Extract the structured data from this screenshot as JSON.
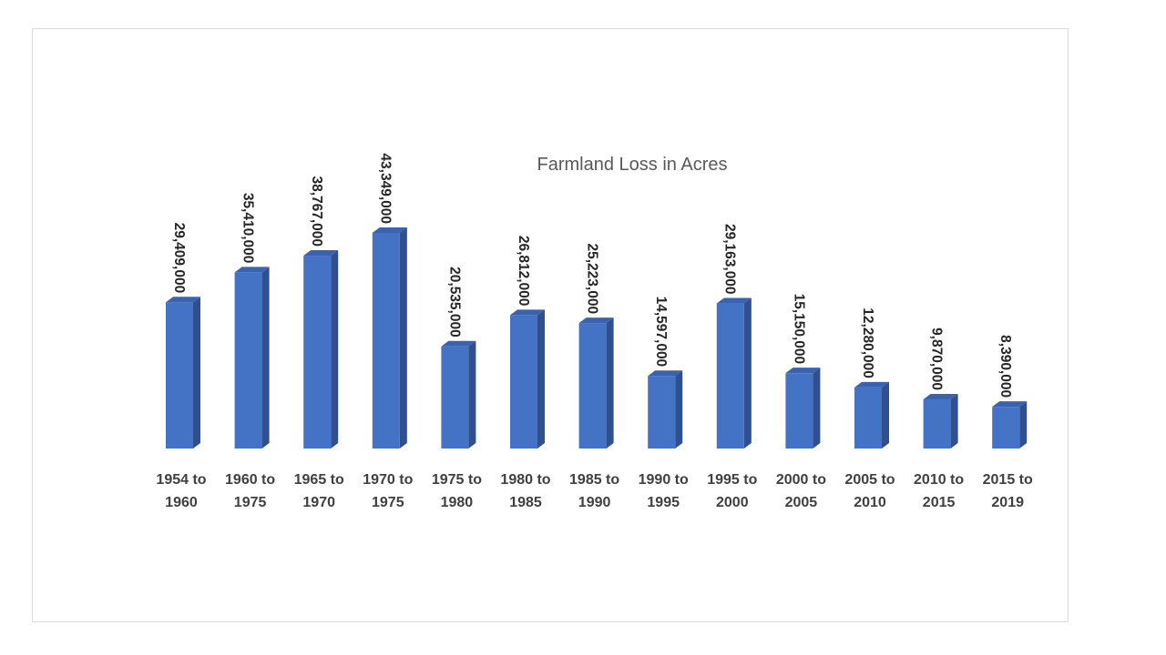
{
  "chart_data": {
    "type": "bar",
    "title": "Farmland Loss in Acres",
    "categories": [
      [
        "1954 to",
        "1960"
      ],
      [
        "1960 to",
        "1975"
      ],
      [
        "1965 to",
        "1970"
      ],
      [
        "1970 to",
        "1975"
      ],
      [
        "1975 to",
        "1980"
      ],
      [
        "1980 to",
        "1985"
      ],
      [
        "1985 to",
        "1990"
      ],
      [
        "1990 to",
        "1995"
      ],
      [
        "1995 to",
        "2000"
      ],
      [
        "2000 to",
        "2005"
      ],
      [
        "2005 to",
        "2010"
      ],
      [
        "2010 to",
        "2015"
      ],
      [
        "2015 to",
        "2019"
      ]
    ],
    "values": [
      29409000,
      35410000,
      38767000,
      43349000,
      20535000,
      26812000,
      25223000,
      14597000,
      29163000,
      15150000,
      12280000,
      9870000,
      8390000
    ],
    "data_labels": [
      "29,409,000",
      "35,410,000",
      "38,767,000",
      "43,349,000",
      "20,535,000",
      "26,812,000",
      "25,223,000",
      "14,597,000",
      "29,163,000",
      "15,150,000",
      "12,280,000",
      "9,870,000",
      "8,390,000"
    ],
    "style": "3d-column",
    "bar_color": "#4472C4",
    "bar_side_color": "#2F4F8F",
    "bar_top_color": "#3A62AE",
    "grid": false,
    "legend": "none",
    "ylim": [
      0,
      48000000
    ]
  }
}
